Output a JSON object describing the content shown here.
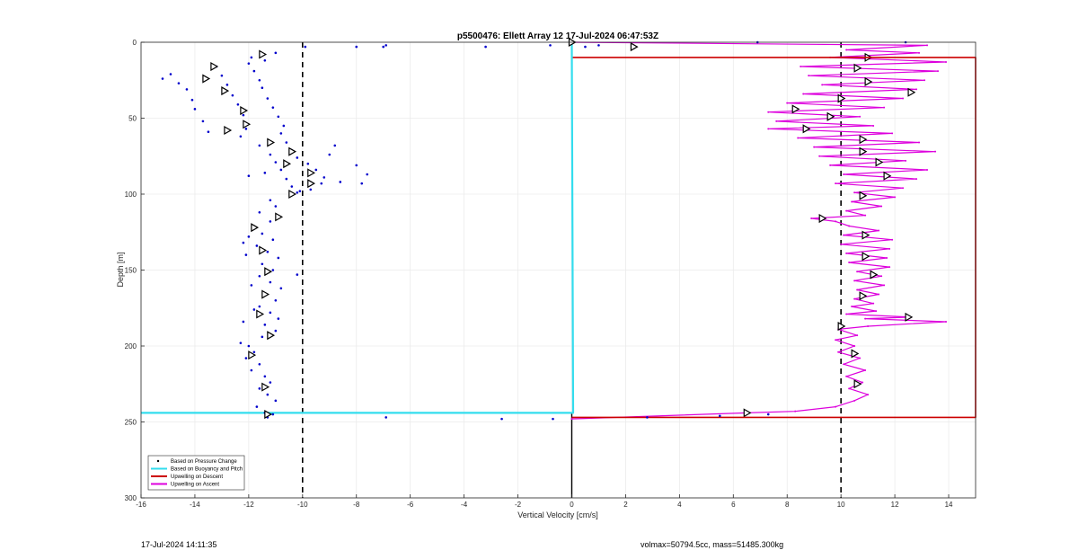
{
  "chart_data": {
    "type": "scatter",
    "title": "p5500476: Ellett Array 12 17-Jul-2024 06:47:53Z",
    "xlabel": "Vertical Velocity [cm/s]",
    "ylabel": "Depth [m]",
    "xlim": [
      -16,
      15
    ],
    "ylim": [
      0,
      300
    ],
    "y_reversed": true,
    "xticks": [
      -16,
      -14,
      -12,
      -10,
      -8,
      -6,
      -4,
      -2,
      0,
      2,
      4,
      6,
      8,
      10,
      12,
      14
    ],
    "yticks": [
      0,
      50,
      100,
      150,
      200,
      250,
      300
    ],
    "grid": true,
    "legend_placement": "bottom-left",
    "reference_lines_x": [
      -10,
      10
    ],
    "series": [
      {
        "name": "Based on Pressure Change",
        "kind": "points",
        "color": "#0000cc",
        "points": [
          [
            -15.2,
            24
          ],
          [
            -14.9,
            21
          ],
          [
            -14.6,
            27
          ],
          [
            -14.3,
            31
          ],
          [
            -14.1,
            38
          ],
          [
            -14.0,
            44
          ],
          [
            -13.7,
            52
          ],
          [
            -13.5,
            59
          ],
          [
            -13.2,
            16
          ],
          [
            -13.0,
            22
          ],
          [
            -12.8,
            28
          ],
          [
            -12.6,
            35
          ],
          [
            -12.4,
            41
          ],
          [
            -12.2,
            48
          ],
          [
            -12.0,
            14
          ],
          [
            -11.8,
            19
          ],
          [
            -11.6,
            25
          ],
          [
            -11.5,
            30
          ],
          [
            -11.3,
            37
          ],
          [
            -11.1,
            43
          ],
          [
            -10.9,
            49
          ],
          [
            -10.7,
            55
          ],
          [
            -12.3,
            62
          ],
          [
            -12.1,
            57
          ],
          [
            -11.9,
            10
          ],
          [
            -11.4,
            12
          ],
          [
            -11.0,
            7
          ],
          [
            -10.8,
            60
          ],
          [
            -10.6,
            66
          ],
          [
            -10.4,
            71
          ],
          [
            -10.2,
            76
          ],
          [
            -9.8,
            80
          ],
          [
            -9.5,
            84
          ],
          [
            -9.2,
            89
          ],
          [
            -9.0,
            74
          ],
          [
            -8.8,
            68
          ],
          [
            -8.6,
            92
          ],
          [
            -11.6,
            68
          ],
          [
            -11.2,
            74
          ],
          [
            -11.0,
            79
          ],
          [
            -10.8,
            84
          ],
          [
            -10.6,
            90
          ],
          [
            -10.4,
            95
          ],
          [
            -10.2,
            99
          ],
          [
            -9.7,
            97
          ],
          [
            -9.3,
            93
          ],
          [
            -11.4,
            86
          ],
          [
            -12.0,
            88
          ],
          [
            -8.0,
            81
          ],
          [
            -7.6,
            87
          ],
          [
            -7.8,
            93
          ],
          [
            -11.2,
            104
          ],
          [
            -11.0,
            108
          ],
          [
            -11.6,
            112
          ],
          [
            -11.2,
            118
          ],
          [
            -11.8,
            122
          ],
          [
            -11.5,
            126
          ],
          [
            -11.1,
            130
          ],
          [
            -11.7,
            134
          ],
          [
            -11.3,
            138
          ],
          [
            -10.9,
            142
          ],
          [
            -11.5,
            146
          ],
          [
            -11.1,
            150
          ],
          [
            -11.6,
            154
          ],
          [
            -11.2,
            158
          ],
          [
            -10.8,
            162
          ],
          [
            -11.4,
            166
          ],
          [
            -11.0,
            170
          ],
          [
            -11.6,
            174
          ],
          [
            -11.2,
            178
          ],
          [
            -10.9,
            182
          ],
          [
            -11.4,
            186
          ],
          [
            -11.0,
            190
          ],
          [
            -11.5,
            194
          ],
          [
            -12.0,
            200
          ],
          [
            -11.8,
            204
          ],
          [
            -12.1,
            208
          ],
          [
            -11.6,
            212
          ],
          [
            -11.9,
            216
          ],
          [
            -11.4,
            220
          ],
          [
            -11.2,
            224
          ],
          [
            -11.6,
            228
          ],
          [
            -11.3,
            232
          ],
          [
            -11.0,
            236
          ],
          [
            -11.7,
            240
          ],
          [
            -11.4,
            244
          ],
          [
            -11.1,
            245
          ],
          [
            -12.3,
            198
          ],
          [
            -12.0,
            128
          ],
          [
            -12.2,
            132
          ],
          [
            -12.1,
            140
          ],
          [
            -11.9,
            160
          ],
          [
            -11.8,
            176
          ],
          [
            -12.2,
            184
          ],
          [
            -10.2,
            153
          ],
          [
            -10.1,
            98
          ],
          [
            -9.9,
            3
          ],
          [
            -8.0,
            3
          ],
          [
            -7.0,
            3
          ],
          [
            -6.9,
            2
          ],
          [
            -3.2,
            3
          ],
          [
            -0.8,
            2
          ],
          [
            0.5,
            3
          ],
          [
            1.0,
            2
          ],
          [
            6.9,
            0
          ],
          [
            12.4,
            0
          ],
          [
            -6.9,
            247
          ],
          [
            -2.6,
            248
          ],
          [
            -0.7,
            248
          ],
          [
            2.8,
            247
          ],
          [
            5.5,
            246
          ],
          [
            7.3,
            245
          ],
          [
            -11.3,
            247
          ]
        ],
        "direction_markers": [
          [
            -11.5,
            8
          ],
          [
            -13.3,
            16
          ],
          [
            -13.6,
            24
          ],
          [
            -12.9,
            32
          ],
          [
            -12.2,
            45
          ],
          [
            -12.1,
            54
          ],
          [
            -12.8,
            58
          ],
          [
            -11.2,
            66
          ],
          [
            -10.4,
            72
          ],
          [
            -10.6,
            80
          ],
          [
            -9.7,
            86
          ],
          [
            -9.7,
            93
          ],
          [
            -10.4,
            100
          ],
          [
            -10.9,
            115
          ],
          [
            -11.8,
            122
          ],
          [
            -11.5,
            137
          ],
          [
            -11.3,
            151
          ],
          [
            -11.4,
            166
          ],
          [
            -11.6,
            179
          ],
          [
            -11.2,
            193
          ],
          [
            -11.9,
            206
          ],
          [
            -11.4,
            227
          ],
          [
            -11.3,
            245
          ],
          [
            0,
            0
          ],
          [
            2.3,
            3
          ]
        ]
      },
      {
        "name": "Based on Buoyancy and Pitch",
        "kind": "line",
        "color": "#33ddee",
        "points": [
          [
            0.0,
            0
          ],
          [
            0.05,
            244
          ],
          [
            -16,
            244
          ]
        ]
      },
      {
        "name": "Upwelling on Descent",
        "kind": "line",
        "color": "#cc0000",
        "points": [
          [
            0,
            0
          ],
          [
            0,
            10
          ],
          [
            15,
            10
          ],
          [
            15,
            247
          ],
          [
            0,
            247
          ]
        ]
      },
      {
        "name": "Upwelling on Ascent",
        "kind": "line",
        "color": "#dd00dd",
        "points": [
          [
            0,
            248
          ],
          [
            6.5,
            244
          ],
          [
            8.3,
            243
          ],
          [
            9.8,
            240
          ],
          [
            10.5,
            236
          ],
          [
            11.0,
            232
          ],
          [
            10.3,
            228
          ],
          [
            10.8,
            224
          ],
          [
            10.2,
            220
          ],
          [
            10.9,
            216
          ],
          [
            10.1,
            212
          ],
          [
            10.7,
            208
          ],
          [
            9.9,
            204
          ],
          [
            10.5,
            200
          ],
          [
            9.8,
            196
          ],
          [
            10.6,
            193
          ],
          [
            9.9,
            189
          ],
          [
            11.0,
            187
          ],
          [
            13.9,
            184
          ],
          [
            10.9,
            182
          ],
          [
            12.6,
            181
          ],
          [
            10.2,
            179
          ],
          [
            11.3,
            177
          ],
          [
            10.4,
            174
          ],
          [
            11.2,
            172
          ],
          [
            10.5,
            169
          ],
          [
            11.4,
            166
          ],
          [
            10.6,
            163
          ],
          [
            11.6,
            160
          ],
          [
            10.5,
            157
          ],
          [
            11.5,
            154
          ],
          [
            10.6,
            151
          ],
          [
            11.8,
            148
          ],
          [
            10.3,
            145
          ],
          [
            11.7,
            142
          ],
          [
            10.2,
            139
          ],
          [
            11.8,
            136
          ],
          [
            10.0,
            133
          ],
          [
            11.9,
            130
          ],
          [
            10.1,
            127
          ],
          [
            11.4,
            124
          ],
          [
            10.3,
            121
          ],
          [
            9.8,
            118
          ],
          [
            8.9,
            116
          ],
          [
            10.9,
            114
          ],
          [
            10.2,
            111
          ],
          [
            11.5,
            108
          ],
          [
            10.4,
            105
          ],
          [
            12.0,
            102
          ],
          [
            10.5,
            99
          ],
          [
            12.3,
            96
          ],
          [
            9.8,
            93
          ],
          [
            12.8,
            90
          ],
          [
            10.1,
            87
          ],
          [
            13.2,
            84
          ],
          [
            9.6,
            81
          ],
          [
            12.4,
            78
          ],
          [
            9.2,
            75
          ],
          [
            13.5,
            72
          ],
          [
            9.0,
            69
          ],
          [
            12.9,
            66
          ],
          [
            8.4,
            63
          ],
          [
            11.9,
            60
          ],
          [
            7.3,
            57
          ],
          [
            11.2,
            55
          ],
          [
            7.6,
            52
          ],
          [
            10.7,
            49
          ],
          [
            7.3,
            46
          ],
          [
            11.6,
            43
          ],
          [
            8.0,
            40
          ],
          [
            12.3,
            37
          ],
          [
            8.6,
            34
          ],
          [
            12.8,
            31
          ],
          [
            9.3,
            28
          ],
          [
            13.1,
            25
          ],
          [
            8.8,
            22
          ],
          [
            13.6,
            19
          ],
          [
            8.5,
            16
          ],
          [
            13.9,
            13
          ],
          [
            9.6,
            10
          ],
          [
            12.9,
            7
          ],
          [
            10.2,
            5
          ],
          [
            13.2,
            2
          ],
          [
            0,
            0
          ]
        ],
        "direction_markers": [
          [
            6.5,
            244
          ],
          [
            10.6,
            225
          ],
          [
            10.5,
            205
          ],
          [
            10.0,
            187
          ],
          [
            12.5,
            181
          ],
          [
            10.8,
            167
          ],
          [
            11.2,
            153
          ],
          [
            10.9,
            141
          ],
          [
            10.9,
            127
          ],
          [
            9.3,
            116
          ],
          [
            10.8,
            101
          ],
          [
            11.7,
            88
          ],
          [
            11.4,
            79
          ],
          [
            10.8,
            72
          ],
          [
            10.8,
            64
          ],
          [
            8.7,
            57
          ],
          [
            9.6,
            49
          ],
          [
            8.3,
            44
          ],
          [
            10.0,
            37
          ],
          [
            12.6,
            33
          ],
          [
            11.0,
            26
          ],
          [
            10.6,
            17
          ],
          [
            11.0,
            10
          ]
        ]
      }
    ]
  },
  "footer": {
    "timestamp": "17-Jul-2024 14:11:35",
    "summary": "volmax=50794.5cc, mass=51485.300kg"
  }
}
